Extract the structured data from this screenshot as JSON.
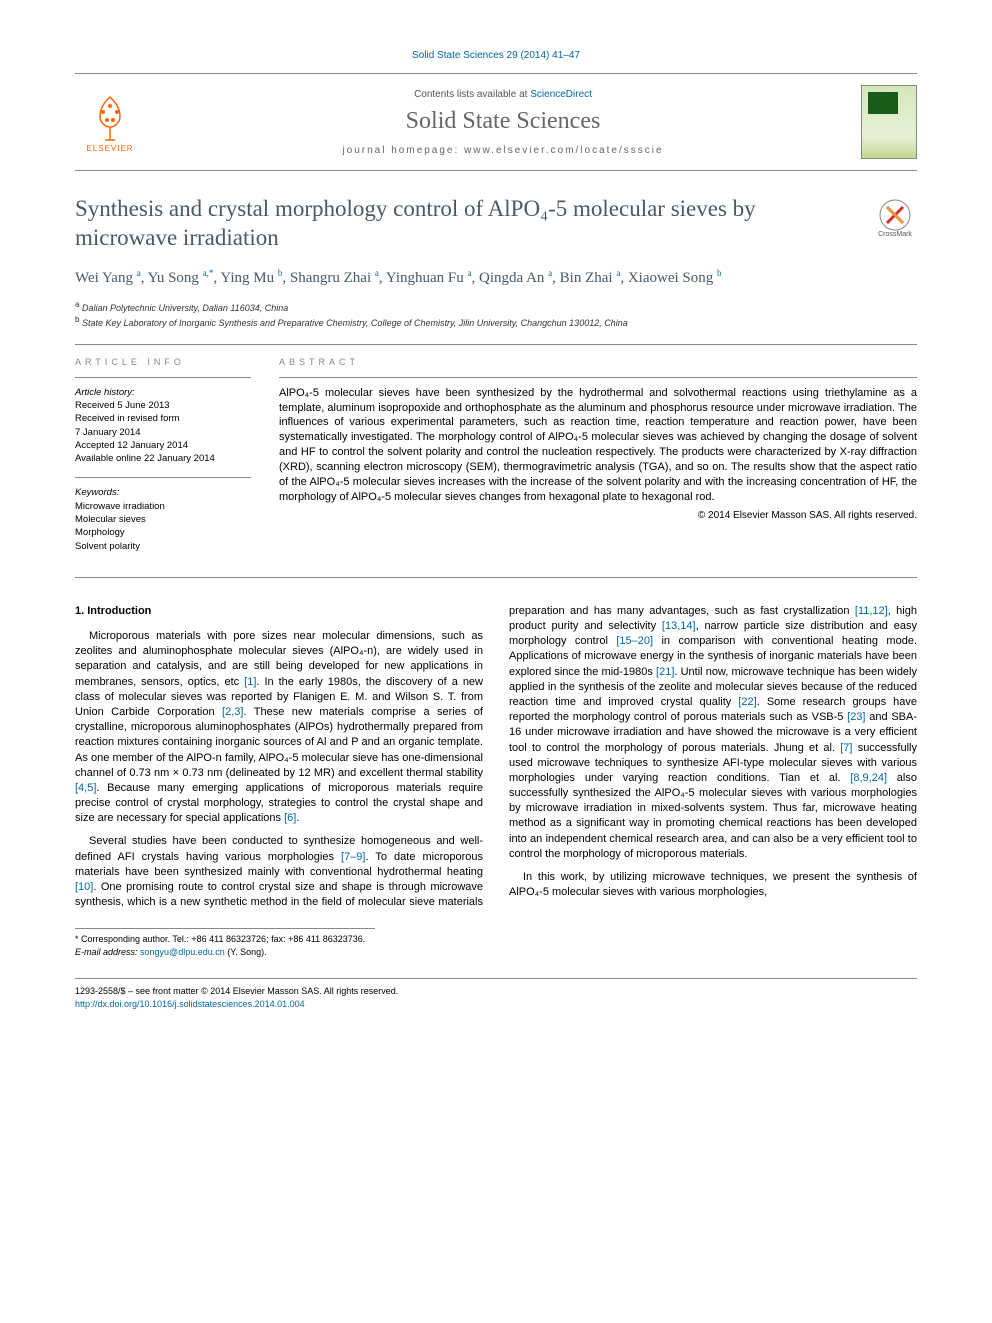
{
  "running_head": "Solid State Sciences 29 (2014) 41–47",
  "masthead": {
    "contents_prefix": "Contents lists available at ",
    "contents_link": "ScienceDirect",
    "journal": "Solid State Sciences",
    "homepage_prefix": "journal homepage: ",
    "homepage_url": "www.elsevier.com/locate/ssscie",
    "publisher_label": "ELSEVIER"
  },
  "crossmark_label": "CrossMark",
  "title": "Synthesis and crystal morphology control of AlPO₄-5 molecular sieves by microwave irradiation",
  "authors_html": "Wei Yang <sup>a</sup>, Yu Song <sup>a,*</sup>, Ying Mu <sup>b</sup>, Shangru Zhai <sup>a</sup>, Yinghuan Fu <sup>a</sup>, Qingda An <sup>a</sup>, Bin Zhai <sup>a</sup>, Xiaowei Song <sup>b</sup>",
  "affiliations": [
    {
      "sup": "a",
      "text": "Dalian Polytechnic University, Dalian 116034, China"
    },
    {
      "sup": "b",
      "text": "State Key Laboratory of Inorganic Synthesis and Preparative Chemistry, College of Chemistry, Jilin University, Changchun 130012, China"
    }
  ],
  "article_info": {
    "label": "ARTICLE INFO",
    "history_label": "Article history:",
    "history": [
      "Received 5 June 2013",
      "Received in revised form",
      "7 January 2014",
      "Accepted 12 January 2014",
      "Available online 22 January 2014"
    ],
    "keywords_label": "Keywords:",
    "keywords": [
      "Microwave irradiation",
      "Molecular sieves",
      "Morphology",
      "Solvent polarity"
    ]
  },
  "abstract": {
    "label": "ABSTRACT",
    "text": "AlPO₄-5 molecular sieves have been synthesized by the hydrothermal and solvothermal reactions using triethylamine as a template, aluminum isopropoxide and orthophosphate as the aluminum and phosphorus resource under microwave irradiation. The influences of various experimental parameters, such as reaction time, reaction temperature and reaction power, have been systematically investigated. The morphology control of AlPO₄-5 molecular sieves was achieved by changing the dosage of solvent and HF to control the solvent polarity and control the nucleation respectively. The products were characterized by X-ray diffraction (XRD), scanning electron microscopy (SEM), thermogravimetric analysis (TGA), and so on. The results show that the aspect ratio of the AlPO₄-5 molecular sieves increases with the increase of the solvent polarity and with the increasing concentration of HF, the morphology of AlPO₄-5 molecular sieves changes from hexagonal plate to hexagonal rod.",
    "copyright": "© 2014 Elsevier Masson SAS. All rights reserved."
  },
  "body": {
    "heading": "1. Introduction",
    "para1": "Microporous materials with pore sizes near molecular dimensions, such as zeolites and aluminophosphate molecular sieves (AlPO₄-n), are widely used in separation and catalysis, and are still being developed for new applications in membranes, sensors, optics, etc [1]. In the early 1980s, the discovery of a new class of molecular sieves was reported by Flanigen E. M. and Wilson S. T. from Union Carbide Corporation [2,3]. These new materials comprise a series of crystalline, microporous aluminophosphates (AlPOs) hydrothermally prepared from reaction mixtures containing inorganic sources of Al and P and an organic template. As one member of the AlPO-n family, AlPO₄-5 molecular sieve has one-dimensional channel of 0.73 nm × 0.73 nm (delineated by 12 MR) and excellent thermal stability [4,5]. Because many emerging applications of microporous materials require precise control of crystal morphology, strategies to control the crystal shape and size are necessary for special applications [6].",
    "para2": "Several studies have been conducted to synthesize homogeneous and well-defined AFI crystals having various morphologies [7–9]. To date microporous materials have been synthesized mainly with conventional hydrothermal heating [10]. One promising route to control crystal size and shape is through microwave synthesis, which is a new synthetic method in the field of molecular sieve materials preparation and has many advantages, such as fast crystallization [11,12], high product purity and selectivity [13,14], narrow particle size distribution and easy morphology control [15–20] in comparison with conventional heating mode. Applications of microwave energy in the synthesis of inorganic materials have been explored since the mid-1980s [21]. Until now, microwave technique has been widely applied in the synthesis of the zeolite and molecular sieves because of the reduced reaction time and improved crystal quality [22]. Some research groups have reported the morphology control of porous materials such as VSB-5 [23] and SBA-16 under microwave irradiation and have showed the microwave is a very efficient tool to control the morphology of porous materials. Jhung et al. [7] successfully used microwave techniques to synthesize AFI-type molecular sieves with various morphologies under varying reaction conditions. Tian et al. [8,9,24] also successfully synthesized the AlPO₄-5 molecular sieves with various morphologies by microwave irradiation in mixed-solvents system. Thus far, microwave heating method as a significant way in promoting chemical reactions has been developed into an independent chemical research area, and can also be a very efficient tool to control the morphology of microporous materials.",
    "para3": "In this work, by utilizing microwave techniques, we present the synthesis of AlPO₄-5 molecular sieves with various morphologies,"
  },
  "corresponding": {
    "line1": "* Corresponding author. Tel.: +86 411 86323726; fax: +86 411 86323736.",
    "line2_label": "E-mail address: ",
    "email": "songyu@dlpu.edu.cn",
    "line2_suffix": " (Y. Song)."
  },
  "footer": {
    "line1": "1293-2558/$ – see front matter © 2014 Elsevier Masson SAS. All rights reserved.",
    "doi": "http://dx.doi.org/10.1016/j.solidstatesciences.2014.01.004"
  },
  "colors": {
    "link": "#0066a4",
    "title": "#495965",
    "orange": "#ff6600",
    "rule": "#888888"
  }
}
